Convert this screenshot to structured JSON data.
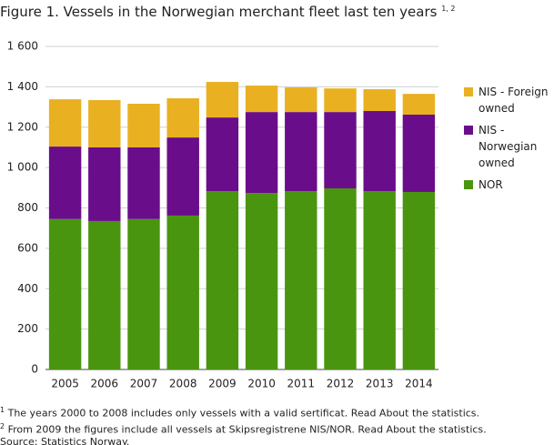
{
  "chart_data": {
    "type": "stacked_bar",
    "title": "Figure 1. Vessels in the Norwegian merchant fleet last ten years",
    "title_note": "1, 2",
    "categories": [
      "2005",
      "2006",
      "2007",
      "2008",
      "2009",
      "2010",
      "2011",
      "2012",
      "2013",
      "2014"
    ],
    "series": [
      {
        "name": "NOR",
        "color": "#4a950f",
        "values": [
          745,
          735,
          745,
          762,
          883,
          874,
          883,
          897,
          883,
          879
        ]
      },
      {
        "name": "NIS - Norwegian owned",
        "color": "#6a0d8a",
        "values": [
          359,
          365,
          355,
          387,
          365,
          401,
          392,
          378,
          397,
          383
        ]
      },
      {
        "name": "NIS - Foreign owned",
        "color": "#e9b021",
        "values": [
          234,
          234,
          216,
          194,
          176,
          131,
          122,
          117,
          108,
          103
        ]
      }
    ],
    "ylim": [
      0,
      1600
    ],
    "yticks": [
      0,
      200,
      400,
      600,
      800,
      {
        "value": 1000,
        "label": "1 000"
      },
      {
        "value": 1200,
        "label": "1 200"
      },
      {
        "value": 1400,
        "label": "1 400"
      },
      {
        "value": 1600,
        "label": "1 600"
      }
    ],
    "grid": true,
    "legend": "right",
    "footnotes": [
      {
        "marker": "1",
        "text": "The years 2000 to 2008 includes only vessels with a valid sertificat. Read About the statistics."
      },
      {
        "marker": "2",
        "text": "From 2009 the figures include all vessels at Skipsregistrene NIS/NOR.  Read About the statistics."
      }
    ],
    "source": "Source: Statistics Norway."
  }
}
